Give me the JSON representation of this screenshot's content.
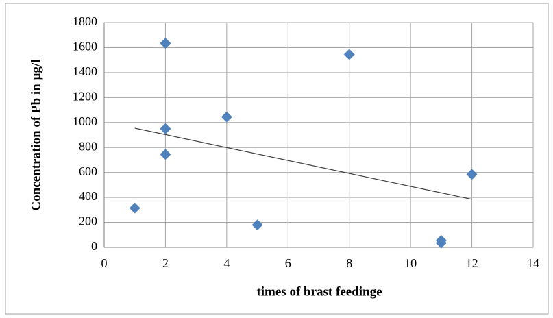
{
  "chart_data": {
    "type": "scatter",
    "xlabel": "times of brast feedinge",
    "ylabel": "Concentration of Pb in µg/l",
    "series": [
      {
        "color": "#4f81bd",
        "x": [
          1,
          2,
          2,
          2,
          4,
          5,
          8,
          11,
          11,
          12
        ],
        "values": [
          315,
          1635,
          950,
          745,
          1045,
          180,
          1545,
          55,
          35,
          585
        ]
      }
    ],
    "trendline": {
      "color": "#404040",
      "x": [
        1,
        12
      ],
      "values": [
        955,
        385
      ]
    },
    "xlim": [
      0,
      14
    ],
    "xticks": [
      0,
      2,
      4,
      6,
      8,
      10,
      12,
      14
    ],
    "ylim": [
      0,
      1800
    ],
    "yticks": [
      0,
      200,
      400,
      600,
      800,
      1000,
      1200,
      1400,
      1600,
      1800
    ],
    "grid": true
  }
}
